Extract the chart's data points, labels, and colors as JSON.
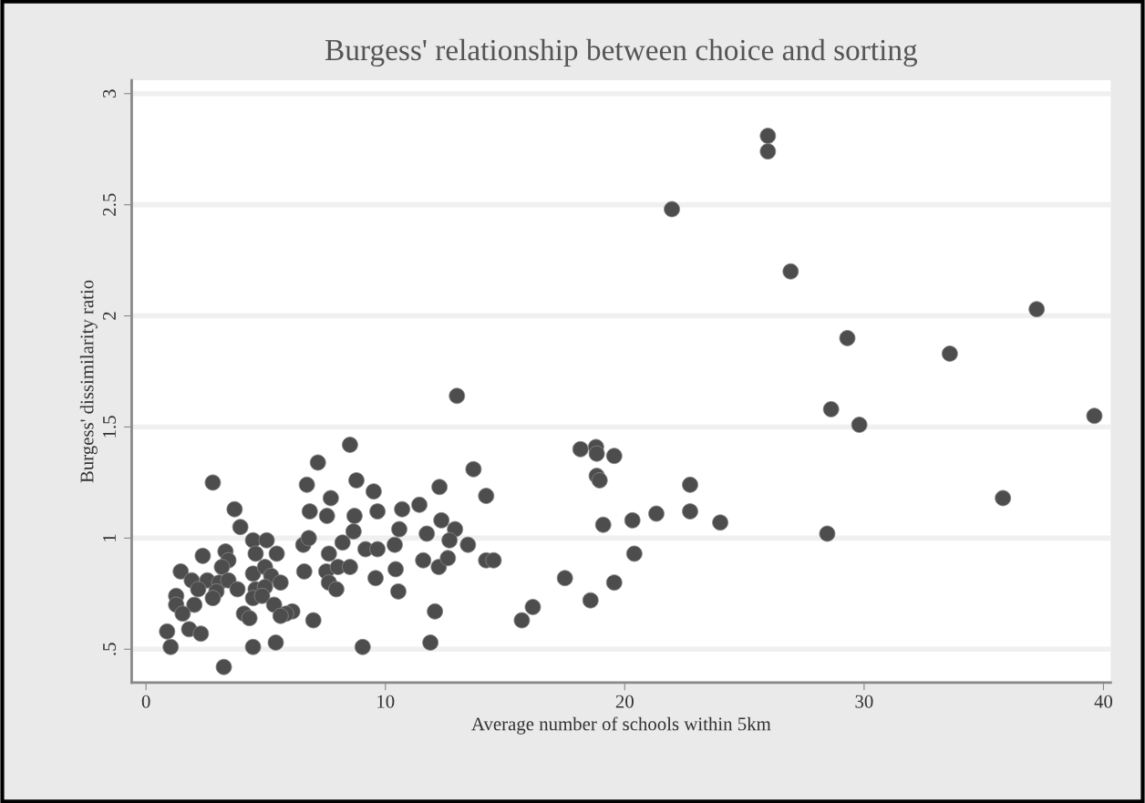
{
  "chart_data": {
    "type": "scatter",
    "title": "Burgess' relationship between choice and sorting",
    "xlabel": "Average number of schools within 5km",
    "ylabel": "Burgess' dissimilarity ratio",
    "x": [
      25.98,
      25.98,
      21.97,
      26.93,
      37.21,
      29.3,
      33.58,
      28.62,
      29.8,
      39.62,
      35.8,
      28.46,
      18.15,
      18.8,
      18.83,
      19.56,
      18.83,
      18.95,
      19.1,
      20.32,
      21.32,
      22.73,
      22.73,
      23.99,
      20.4,
      17.5,
      19.56,
      18.57,
      16.16,
      15.7,
      12.99,
      8.52,
      7.18,
      6.72,
      7.72,
      8.79,
      9.51,
      6.84,
      7.56,
      8.71,
      9.67,
      10.7,
      11.42,
      12.26,
      13.68,
      14.21,
      6.57,
      6.8,
      8.21,
      8.67,
      9.17,
      9.67,
      10.58,
      10.39,
      11.73,
      12.34,
      12.91,
      12.68,
      13.45,
      7.64,
      6.61,
      7.53,
      8.02,
      8.52,
      7.64,
      7.95,
      9.59,
      10.43,
      10.54,
      11.58,
      12.23,
      12.61,
      14.21,
      14.52,
      12.07,
      6.11,
      6.99,
      9.05,
      11.88,
      2.79,
      3.7,
      3.94,
      4.47,
      5.04,
      2.37,
      3.32,
      3.44,
      3.17,
      4.58,
      5.46,
      1.45,
      1.91,
      2.56,
      3.06,
      3.44,
      4.47,
      4.97,
      5.23,
      5.62,
      4.58,
      4.97,
      3.82,
      2.94,
      2.18,
      1.26,
      1.26,
      2.02,
      1.53,
      2.79,
      4.47,
      4.85,
      5.35,
      5.85,
      5.62,
      4.09,
      4.32,
      1.8,
      2.29,
      0.88,
      1.03,
      4.47,
      5.42,
      3.25
    ],
    "values": [
      2.81,
      2.74,
      2.48,
      2.2,
      2.03,
      1.9,
      1.83,
      1.58,
      1.51,
      1.55,
      1.18,
      1.02,
      1.4,
      1.41,
      1.38,
      1.37,
      1.28,
      1.26,
      1.06,
      1.08,
      1.11,
      1.24,
      1.12,
      1.07,
      0.93,
      0.82,
      0.8,
      0.72,
      0.69,
      0.63,
      1.64,
      1.42,
      1.34,
      1.24,
      1.18,
      1.26,
      1.21,
      1.12,
      1.1,
      1.1,
      1.12,
      1.13,
      1.15,
      1.23,
      1.31,
      1.19,
      0.97,
      1.0,
      0.98,
      1.03,
      0.95,
      0.95,
      1.04,
      0.97,
      1.02,
      1.08,
      1.04,
      0.99,
      0.97,
      0.93,
      0.85,
      0.85,
      0.87,
      0.87,
      0.8,
      0.77,
      0.82,
      0.86,
      0.76,
      0.9,
      0.87,
      0.91,
      0.9,
      0.9,
      0.67,
      0.67,
      0.63,
      0.51,
      0.53,
      1.25,
      1.13,
      1.05,
      0.99,
      0.99,
      0.92,
      0.94,
      0.9,
      0.87,
      0.93,
      0.93,
      0.85,
      0.81,
      0.81,
      0.8,
      0.81,
      0.84,
      0.87,
      0.83,
      0.8,
      0.77,
      0.78,
      0.77,
      0.76,
      0.77,
      0.74,
      0.7,
      0.7,
      0.66,
      0.73,
      0.73,
      0.74,
      0.7,
      0.66,
      0.65,
      0.66,
      0.64,
      0.59,
      0.57,
      0.58,
      0.51,
      0.51,
      0.53,
      0.42
    ],
    "color": "#4d4d4d",
    "marker": "circle",
    "grid": "y",
    "xlim": [
      -0.6,
      40.3
    ],
    "xticks": [
      0,
      10,
      20,
      30,
      40
    ],
    "ylim": [
      0.35,
      3.06
    ],
    "yticks": [
      {
        "value": 0.5,
        "label": ".5"
      },
      1,
      1.5,
      2,
      2.5,
      3
    ]
  }
}
